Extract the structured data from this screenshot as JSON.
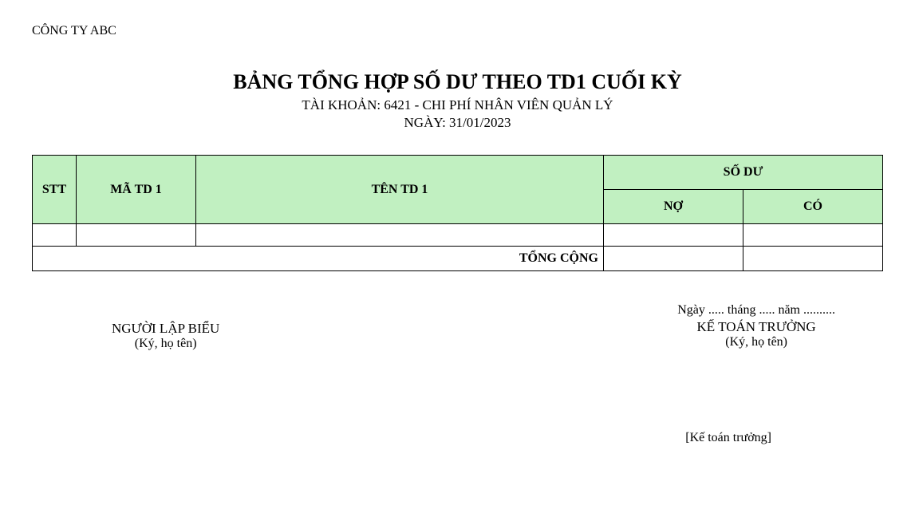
{
  "company": "CÔNG TY ABC",
  "header": {
    "title": "BẢNG TỔNG HỢP SỐ DƯ THEO TD1 CUỐI KỲ",
    "account_line": "TÀI KHOẢN: 6421 - CHI PHÍ NHÂN VIÊN QUẢN LÝ",
    "date_line": "NGÀY: 31/01/2023"
  },
  "table": {
    "columns": {
      "stt": "STT",
      "ma_td1": "MÃ TD 1",
      "ten_td1": "TÊN TD 1",
      "so_du": "SỐ DƯ",
      "no": "NỢ",
      "co": "CÓ"
    },
    "rows": [
      {
        "stt": "",
        "ma": "",
        "ten": "",
        "no": "",
        "co": ""
      }
    ],
    "total_label": "TỔNG CỘNG",
    "total_no": "",
    "total_co": "",
    "header_bg": "#c1f0c1",
    "border_color": "#000000"
  },
  "signatures": {
    "date_placeholder": "Ngày ..... tháng ..... năm ..........",
    "left_role": "NGƯỜI LẬP BIỂU",
    "left_note": "(Ký, họ tên)",
    "right_role": "KẾ TOÁN TRƯỞNG",
    "right_note": "(Ký, họ tên)"
  },
  "stamp": "[Kế toán trưởng]"
}
